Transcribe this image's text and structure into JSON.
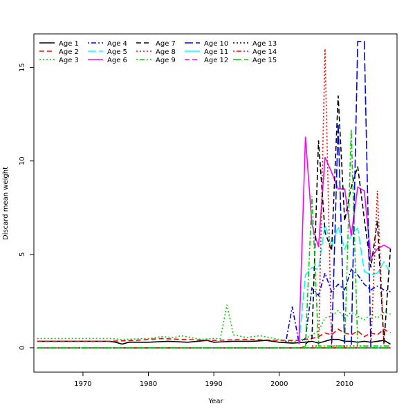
{
  "chart_data": {
    "type": "line",
    "xlabel": "Year",
    "ylabel": "Discard mean weight",
    "xlim": [
      1962.5,
      2018.0
    ],
    "ylim": [
      -1.3,
      16.8
    ],
    "xticks": [
      1970,
      1980,
      1990,
      2000,
      2010
    ],
    "yticks": [
      0,
      5,
      10,
      15
    ],
    "legend_position": "top-left",
    "series": [
      {
        "name": "Age 1",
        "color": "#000000",
        "dash": "solid",
        "x": [
          1963,
          1966,
          1970,
          1974,
          1975,
          1976,
          1977,
          1980,
          1983,
          1986,
          1989,
          1990,
          1993,
          1996,
          1998,
          2000,
          2002,
          2004,
          2005,
          2006,
          2007,
          2008,
          2009,
          2010,
          2011,
          2012,
          2013,
          2014,
          2015,
          2016,
          2017
        ],
        "y": [
          0.35,
          0.35,
          0.35,
          0.35,
          0.3,
          0.2,
          0.3,
          0.3,
          0.35,
          0.3,
          0.4,
          0.3,
          0.35,
          0.35,
          0.4,
          0.3,
          0.25,
          0.3,
          0.35,
          0.25,
          0.35,
          0.45,
          0.45,
          0.35,
          0.35,
          0.3,
          0.35,
          0.3,
          0.35,
          0.4,
          0.2
        ]
      },
      {
        "name": "Age 2",
        "color": "#ff0000",
        "dash": "dashed",
        "x": [
          1963,
          1970,
          1974,
          1978,
          1982,
          1985,
          1990,
          1995,
          2000,
          2003,
          2005,
          2006,
          2007,
          2008,
          2009,
          2010,
          2011,
          2012,
          2013,
          2014,
          2015,
          2016,
          2017
        ],
        "y": [
          0.35,
          0.35,
          0.35,
          0.4,
          0.5,
          0.45,
          0.4,
          0.45,
          0.4,
          0.4,
          0.5,
          0.6,
          0.8,
          0.7,
          1.0,
          0.8,
          0.7,
          0.9,
          0.6,
          0.8,
          0.7,
          1.0,
          0.8
        ]
      },
      {
        "name": "Age 3",
        "color": "#00cd00",
        "dash": "dotted",
        "x": [
          1963,
          1970,
          1974,
          1976,
          1980,
          1982,
          1984,
          1985,
          1988,
          1990,
          1991,
          1992,
          1993,
          1995,
          1997,
          2000,
          2002,
          2004,
          2005,
          2006,
          2007,
          2008,
          2009,
          2010,
          2011,
          2012,
          2013,
          2014,
          2015,
          2016,
          2017
        ],
        "y": [
          0.5,
          0.5,
          0.5,
          0.45,
          0.5,
          0.6,
          0.55,
          0.65,
          0.45,
          0.5,
          0.5,
          2.3,
          0.7,
          0.55,
          0.65,
          0.45,
          0.3,
          0.5,
          0.7,
          0.9,
          1.6,
          1.7,
          2.0,
          1.6,
          1.9,
          1.7,
          1.5,
          1.8,
          1.6,
          1.9,
          1.8
        ]
      },
      {
        "name": "Age 4",
        "color": "#0000ff",
        "dash": "dotdash",
        "x": [
          2001,
          2002,
          2003,
          2004,
          2005,
          2006,
          2007,
          2008,
          2009,
          2010,
          2011,
          2012,
          2013,
          2014,
          2015,
          2016,
          2017
        ],
        "y": [
          0.3,
          2.2,
          0.3,
          0.5,
          3.2,
          2.8,
          4.0,
          3.0,
          3.4,
          3.1,
          4.2,
          3.9,
          3.4,
          3.1,
          3.3,
          3.1,
          3.0
        ]
      },
      {
        "name": "Age 5",
        "color": "#00ffff",
        "dash": "longdash",
        "x": [
          2003,
          2004,
          2005,
          2006,
          2007,
          2008,
          2009,
          2010,
          2011,
          2012,
          2013,
          2014,
          2015,
          2016,
          2017
        ],
        "y": [
          0.2,
          3.9,
          4.3,
          4.2,
          6.6,
          5.4,
          6.5,
          5.3,
          6.0,
          6.4,
          4.1,
          3.9,
          4.0,
          4.6,
          4.0
        ]
      },
      {
        "name": "Age 6",
        "color": "#ff00ff",
        "dash": "solid",
        "x": [
          2003,
          2004,
          2005,
          2006,
          2007,
          2008,
          2009,
          2010,
          2011,
          2012,
          2013,
          2014,
          2015,
          2016,
          2017
        ],
        "y": [
          0.2,
          11.3,
          6.6,
          5.4,
          10.2,
          9.4,
          8.5,
          8.5,
          6.0,
          8.6,
          8.4,
          4.8,
          5.3,
          5.5,
          5.3
        ]
      },
      {
        "name": "Age 7",
        "color": "#000000",
        "dash": "dashed",
        "x": [
          2004,
          2005,
          2006,
          2007,
          2008,
          2009,
          2010,
          2011,
          2012,
          2013,
          2014,
          2015,
          2016,
          2017
        ],
        "y": [
          0.2,
          0.5,
          11.1,
          6.2,
          5.2,
          13.5,
          6.8,
          8.6,
          9.7,
          6.9,
          4.3,
          6.8,
          0.2,
          5.3
        ]
      },
      {
        "name": "Age 8",
        "color": "#ff0000",
        "dash": "dotted",
        "x": [
          2005,
          2006,
          2007,
          2008,
          2009,
          2010,
          2011,
          2012,
          2013,
          2014,
          2015,
          2016,
          2017
        ],
        "y": [
          0.1,
          0.1,
          16.0,
          0.1,
          0.1,
          0.1,
          0.1,
          0.1,
          0.1,
          0.1,
          8.4,
          0.1,
          0.1
        ]
      },
      {
        "name": "Age 9",
        "color": "#00cd00",
        "dash": "dotdash",
        "x": [
          2003,
          2004,
          2005,
          2006,
          2007,
          2008,
          2009,
          2010,
          2011,
          2012,
          2013,
          2014,
          2015,
          2016,
          2017
        ],
        "y": [
          0.0,
          0.1,
          8.1,
          0.1,
          0.1,
          0.1,
          0.1,
          0.1,
          11.7,
          0.1,
          0.1,
          0.1,
          0.1,
          0.1,
          0.1
        ]
      },
      {
        "name": "Age 10",
        "color": "#0000ff",
        "dash": "longdash",
        "x": [
          2007,
          2008,
          2009,
          2010,
          2011,
          2012,
          2013,
          2014,
          2015,
          2016,
          2017
        ],
        "y": [
          0.0,
          0.0,
          12.0,
          0.0,
          0.0,
          16.4,
          16.4,
          0.0,
          0.0,
          0.0,
          0.0
        ]
      },
      {
        "name": "Age 11",
        "color": "#00ffff",
        "dash": "solid",
        "x": [
          1963,
          2017
        ],
        "y": [
          0.0,
          0.0
        ]
      },
      {
        "name": "Age 12",
        "color": "#ff00ff",
        "dash": "dashed",
        "x": [
          1963,
          2017
        ],
        "y": [
          0.0,
          0.0
        ]
      },
      {
        "name": "Age 13",
        "color": "#000000",
        "dash": "dotted",
        "x": [
          1963,
          2017
        ],
        "y": [
          0.0,
          0.0
        ]
      },
      {
        "name": "Age 14",
        "color": "#ff0000",
        "dash": "dotdash",
        "x": [
          1963,
          2017
        ],
        "y": [
          0.0,
          0.0
        ]
      },
      {
        "name": "Age 15",
        "color": "#00cd00",
        "dash": "longdash",
        "x": [
          1963,
          2017
        ],
        "y": [
          0.0,
          0.0
        ]
      }
    ]
  }
}
